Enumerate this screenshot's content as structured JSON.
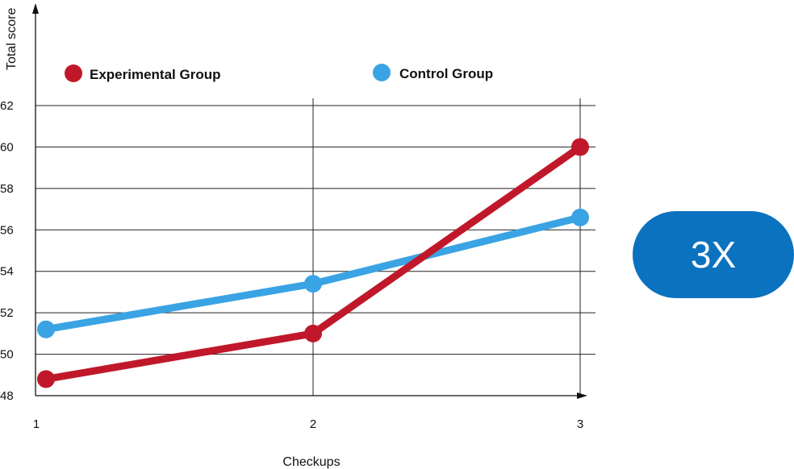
{
  "chart_data": {
    "type": "line",
    "title": "",
    "xlabel": "Checkups",
    "ylabel": "Total score",
    "x": [
      1,
      2,
      3
    ],
    "xticks": [
      "1",
      "2",
      "3"
    ],
    "yticks": [
      48,
      50,
      52,
      54,
      56,
      58,
      60,
      62
    ],
    "ylim": [
      48,
      62
    ],
    "grid": true,
    "legend_placement": "top",
    "series": [
      {
        "name": "Experimental Group",
        "color": "#c0182a",
        "values": [
          48.8,
          51.0,
          60.0
        ]
      },
      {
        "name": "Control Group",
        "color": "#3aa3e3",
        "values": [
          51.2,
          53.4,
          56.6
        ]
      }
    ]
  },
  "badge": {
    "label": "3X",
    "color": "#0b72bf"
  }
}
